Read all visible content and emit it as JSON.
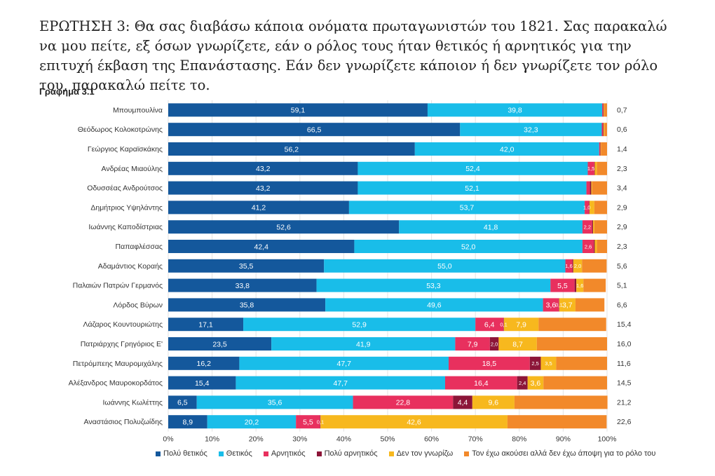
{
  "question": "ΕΡΩΤΗΣΗ 3: Θα σας διαβάσω κάποια ονόματα πρωταγωνιστών του 1821. Σας παρακαλώ να μου πείτε, εξ όσων γνωρίζετε, εάν ο ρόλος τους ήταν θετικός ή αρνητικός για την επιτυχή έκβαση της Επανάστασης. Εάν δεν γνωρίζετε κάποιον ή δεν γνωρίζετε τον ρόλο του, παρακαλώ πείτε το.",
  "chart_label": "Γράφημα 3.1",
  "chart_data": {
    "type": "bar",
    "orientation": "horizontal",
    "stacked": true,
    "xlim": [
      0,
      100
    ],
    "x_ticks": [
      "0%",
      "10%",
      "20%",
      "30%",
      "40%",
      "50%",
      "60%",
      "70%",
      "80%",
      "90%",
      "100%"
    ],
    "grid": true,
    "legend_position": "bottom",
    "categories": [
      "Μπουμπουλίνα",
      "Θεόδωρος Κολοκοτρώνης",
      "Γεώργιος Καραϊσκάκης",
      "Ανδρέας Μιαούλης",
      "Οδυσσέας Ανδρούτσος",
      "Δημήτριος Υψηλάντης",
      "Ιωάννης Καποδίστριας",
      "Παπαφλέσσας",
      "Αδαμάντιος Κοραής",
      "Παλαιών Πατρών Γερμανός",
      "Λόρδος Βύρων",
      "Λάζαρος Κουντουριώτης",
      "Πατριάρχης Γρηγόριος Ε'",
      "Πετρόμπεης Μαυρομιχάλης",
      "Αλέξανδρος Μαυροκορδάτος",
      "Ιωάννης Κωλέττης",
      "Αναστάσιος Πολυζωίδης"
    ],
    "series": [
      {
        "name": "Πολύ θετικός",
        "color": "#14589c",
        "values": [
          59.1,
          66.5,
          56.2,
          43.2,
          43.2,
          41.2,
          52.6,
          42.4,
          35.5,
          33.8,
          35.8,
          17.1,
          23.5,
          16.2,
          15.4,
          6.5,
          8.9
        ]
      },
      {
        "name": "Θετικός",
        "color": "#19bde9",
        "values": [
          39.8,
          32.3,
          42.0,
          52.4,
          52.1,
          53.7,
          41.8,
          52.0,
          55.0,
          53.3,
          49.6,
          52.9,
          41.9,
          47.7,
          47.7,
          35.6,
          20.2
        ]
      },
      {
        "name": "Αρνητικός",
        "color": "#e8305e",
        "values": [
          0.2,
          0.3,
          0.2,
          1.5,
          0.8,
          1.0,
          2.2,
          2.6,
          1.6,
          5.5,
          3.6,
          6.4,
          7.9,
          18.5,
          16.4,
          22.8,
          5.5
        ]
      },
      {
        "name": "Πολύ αρνητικός",
        "color": "#8c1538",
        "values": [
          0.1,
          0.1,
          0.1,
          0.1,
          0.3,
          0.1,
          0.2,
          0.2,
          0.2,
          0.4,
          0.1,
          0.1,
          2.0,
          2.5,
          2.4,
          4.4,
          0.1
        ]
      },
      {
        "name": "Δεν τον γνωρίζω",
        "color": "#f7b81e",
        "values": [
          0.1,
          0.2,
          0.1,
          0.5,
          0.2,
          1.1,
          0.3,
          0.5,
          2.0,
          1.6,
          3.7,
          7.9,
          8.7,
          3.5,
          3.6,
          9.6,
          42.6
        ]
      },
      {
        "name": "Τον έχω ακούσει αλλά δεν έχω άποψη για το ρόλο του",
        "color": "#f2892a",
        "values": [
          0.7,
          0.6,
          1.4,
          2.3,
          3.4,
          2.9,
          2.9,
          2.3,
          5.6,
          5.1,
          6.6,
          15.4,
          16.0,
          11.6,
          14.5,
          21.2,
          22.6
        ]
      }
    ],
    "bar_labels": [
      [
        "59,1",
        "39,8",
        "",
        "",
        "",
        ""
      ],
      [
        "66,5",
        "32,3",
        "",
        "",
        "",
        ""
      ],
      [
        "56,2",
        "42,0",
        "",
        "",
        "",
        ""
      ],
      [
        "43,2",
        "52,4",
        "1,5",
        "",
        "",
        ""
      ],
      [
        "43,2",
        "52,1",
        "",
        "",
        "",
        ""
      ],
      [
        "41,2",
        "53,7",
        "1,0",
        "",
        "",
        ""
      ],
      [
        "52,6",
        "41,8",
        "2,2",
        "",
        "",
        ""
      ],
      [
        "42,4",
        "52,0",
        "2,6",
        "",
        "",
        ""
      ],
      [
        "35,5",
        "55,0",
        "1,6",
        "",
        "2,0",
        ""
      ],
      [
        "33,8",
        "53,3",
        "5,5",
        "",
        "1,6",
        ""
      ],
      [
        "35,8",
        "49,6",
        "3,6",
        "0,1",
        "3,7",
        ""
      ],
      [
        "17,1",
        "52,9",
        "6,4",
        "0,1",
        "7,9",
        ""
      ],
      [
        "23,5",
        "41,9",
        "7,9",
        "2,0",
        "8,7",
        ""
      ],
      [
        "16,2",
        "47,7",
        "18,5",
        "2,5",
        "3,5",
        ""
      ],
      [
        "15,4",
        "47,7",
        "16,4",
        "2,4",
        "3,6",
        ""
      ],
      [
        "6,5",
        "35,6",
        "22,8",
        "4,4",
        "9,6",
        ""
      ],
      [
        "8,9",
        "20,2",
        "5,5",
        "0,1",
        "42,6",
        ""
      ]
    ],
    "right_labels": [
      "0,7",
      "0,6",
      "1,4",
      "2,3",
      "3,4",
      "2,9",
      "2,9",
      "2,3",
      "5,6",
      "5,1",
      "6,6",
      "15,4",
      "16,0",
      "11,6",
      "14,5",
      "21,2",
      "22,6"
    ]
  }
}
